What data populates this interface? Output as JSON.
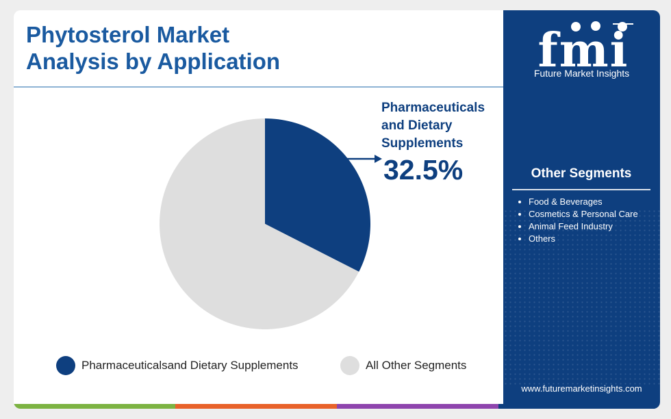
{
  "header": {
    "title_line1": "Phytosterol Market",
    "title_line2": "Analysis by Application"
  },
  "chart_data": {
    "type": "pie",
    "slices": [
      {
        "label": "Pharmaceuticalsand Dietary Supplements",
        "value": 32.5,
        "color": "#0e3f7f"
      },
      {
        "label": "All Other Segments",
        "value": 67.5,
        "color": "#dedede"
      }
    ],
    "callout": {
      "line1": "Pharmaceuticals",
      "line2": "and Dietary",
      "line3": "Supplements",
      "value": "32.5%"
    },
    "legend": [
      {
        "label": "Pharmaceuticalsand Dietary Supplements",
        "color": "#0e3f7f"
      },
      {
        "label": "All Other Segments",
        "color": "#dedede"
      }
    ]
  },
  "sidebar": {
    "logo_text": "fmi",
    "logo_subtitle": "Future Market Insights",
    "other_title": "Other Segments",
    "items": [
      "Food & Beverages",
      "Cosmetics & Personal Care",
      "Animal Feed Industry",
      "Others"
    ],
    "url": "www.futuremarketinsights.com"
  },
  "colors": {
    "accent": "#0e3f7f",
    "title": "#1a5aa0",
    "bottom_bar": [
      "#7cb342",
      "#e8622a",
      "#8e44ad",
      "#0e3f7f"
    ]
  }
}
